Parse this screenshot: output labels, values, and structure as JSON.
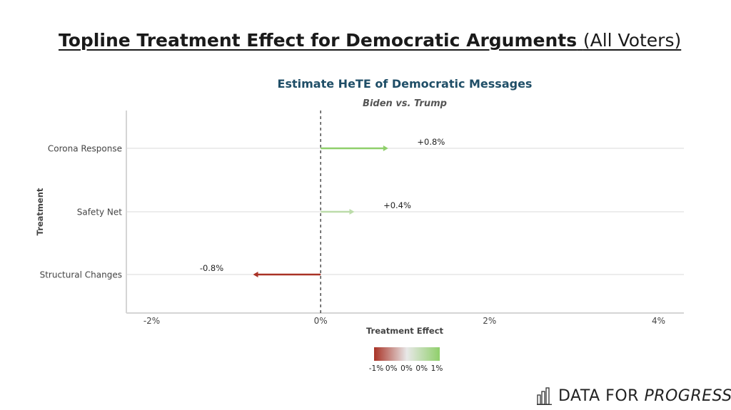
{
  "slide": {
    "title_bold": "Topline Treatment Effect for Democratic Arguments",
    "title_normal": "(All Voters)"
  },
  "logo": {
    "text_plain": "DATA FOR",
    "text_italic": "PROGRESS",
    "icon": "bar-chart-icon"
  },
  "chart_data": {
    "type": "bar",
    "title": "Estimate HeTE of Democratic Messages",
    "subtitle": "Biden vs. Trump",
    "xlabel": "Treatment Effect",
    "ylabel": "Treatment",
    "categories": [
      "Corona Response",
      "Safety Net",
      "Structural Changes"
    ],
    "values": [
      0.8,
      0.4,
      -0.8
    ],
    "data_labels": [
      "+0.8%",
      "+0.4%",
      "-0.8%"
    ],
    "xlim": [
      -2.3,
      4.3
    ],
    "xticks": [
      -2,
      0,
      2,
      4
    ],
    "xtick_labels": [
      "-2%",
      "0%",
      "2%",
      "4%"
    ],
    "reference_line": 0,
    "grid": "horizontal",
    "colors": {
      "negative": "#a93226",
      "neutral": "#e8e8e8",
      "positive": "#8fcf6b"
    },
    "legend": {
      "type": "color-gradient",
      "placement": "bottom",
      "labels": [
        "-1%",
        "0%",
        "0%",
        "0%",
        "1%"
      ]
    }
  }
}
